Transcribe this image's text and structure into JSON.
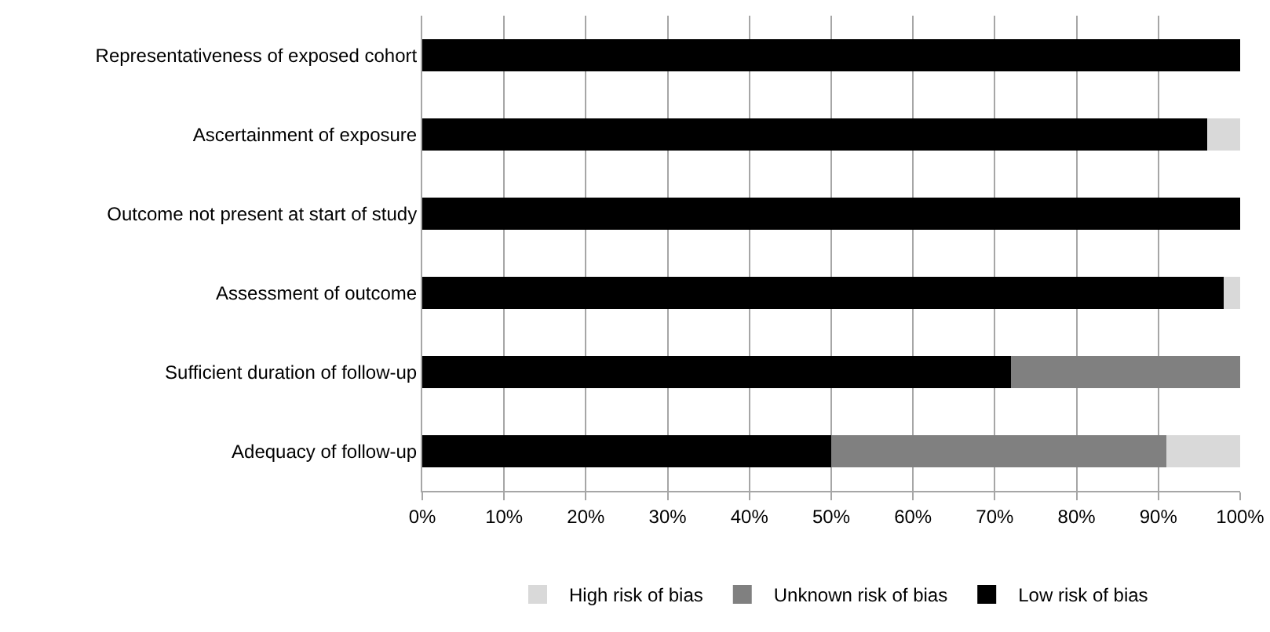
{
  "chart_data": {
    "type": "bar",
    "orientation": "horizontal",
    "stacked": true,
    "categories": [
      "Representativeness of exposed cohort",
      "Ascertainment of exposure",
      "Outcome not present at start of study",
      "Assessment of outcome",
      "Sufficient duration of follow-up",
      "Adequacy of follow-up"
    ],
    "series": [
      {
        "name": "Low risk of bias",
        "color": "#000000",
        "values": [
          100,
          96,
          100,
          98,
          72,
          50
        ]
      },
      {
        "name": "Unknown risk of bias",
        "color": "#808080",
        "values": [
          0,
          0,
          0,
          0,
          28,
          41
        ]
      },
      {
        "name": "High risk of bias",
        "color": "#d9d9d9",
        "values": [
          0,
          4,
          0,
          2,
          0,
          9
        ]
      }
    ],
    "xlim": [
      0,
      100
    ],
    "xticks": [
      {
        "value": 0,
        "label": "0%"
      },
      {
        "value": 10,
        "label": "10%"
      },
      {
        "value": 20,
        "label": "20%"
      },
      {
        "value": 30,
        "label": "30%"
      },
      {
        "value": 40,
        "label": "40%"
      },
      {
        "value": 50,
        "label": "50%"
      },
      {
        "value": 60,
        "label": "60%"
      },
      {
        "value": 70,
        "label": "70%"
      },
      {
        "value": 80,
        "label": "80%"
      },
      {
        "value": 90,
        "label": "90%"
      },
      {
        "value": 100,
        "label": "100%"
      }
    ],
    "grid": "x",
    "legend": "bottom"
  }
}
